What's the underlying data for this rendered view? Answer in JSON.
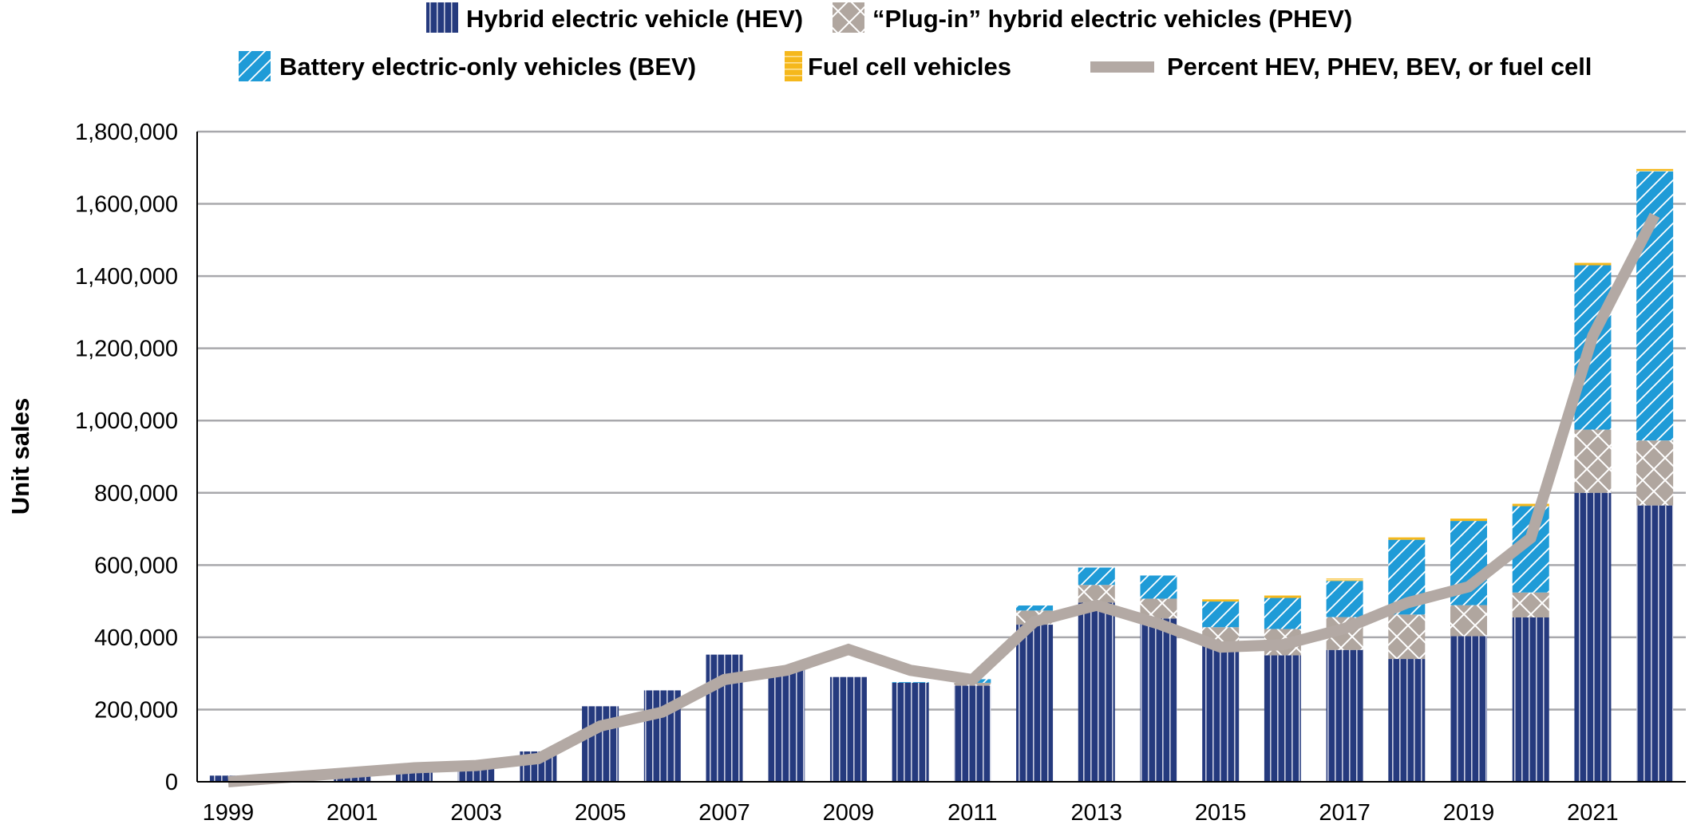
{
  "chart_data": {
    "type": "bar",
    "stacked": true,
    "title": "",
    "xlabel": "",
    "ylabel": "Unit sales",
    "ylim": [
      0,
      1800000
    ],
    "yticks": [
      "0",
      "200,000",
      "400,000",
      "600,000",
      "800,000",
      "1,000,000",
      "1,200,000",
      "1,400,000",
      "1,600,000",
      "1,800,000"
    ],
    "grid": true,
    "legend_position": "top",
    "categories": [
      "1999",
      "2000",
      "2001",
      "2002",
      "2003",
      "2004",
      "2005",
      "2006",
      "2007",
      "2008",
      "2009",
      "2010",
      "2011",
      "2012",
      "2013",
      "2014",
      "2015",
      "2016",
      "2017",
      "2018",
      "2019",
      "2020",
      "2021",
      "2022"
    ],
    "xtick_labels": [
      "1999",
      "2001",
      "2003",
      "2005",
      "2007",
      "2009",
      "2011",
      "2013",
      "2015",
      "2017",
      "2019",
      "2021"
    ],
    "series": [
      {
        "name": "Hybrid electric vehicle (HEV)",
        "color": "#253a7e",
        "values": [
          17000,
          9000,
          20000,
          36000,
          48000,
          84000,
          209000,
          253000,
          352000,
          313000,
          290000,
          274000,
          266000,
          435000,
          496000,
          452000,
          385000,
          350000,
          365000,
          340000,
          403000,
          455000,
          800000,
          765000
        ]
      },
      {
        "name": "“Plug-in” hybrid electric vehicles (PHEV)",
        "color": "#b0a69f",
        "values": [
          0,
          0,
          0,
          0,
          0,
          0,
          0,
          0,
          0,
          0,
          0,
          0,
          8000,
          39000,
          49000,
          55000,
          43000,
          73000,
          91000,
          123000,
          86000,
          69000,
          175000,
          180000
        ]
      },
      {
        "name": "Battery electric-only vehicles (BEV)",
        "color": "#1f9bd7",
        "values": [
          0,
          0,
          0,
          0,
          0,
          0,
          0,
          0,
          0,
          0,
          0,
          2000,
          10000,
          14000,
          48000,
          64000,
          71000,
          86000,
          100000,
          207000,
          233000,
          239000,
          455000,
          745000
        ]
      },
      {
        "name": "Fuel cell vehicles",
        "color": "#f5b81c",
        "values": [
          0,
          0,
          0,
          0,
          0,
          0,
          0,
          0,
          0,
          0,
          0,
          0,
          0,
          0,
          0,
          0,
          2000,
          3000,
          3000,
          3000,
          3000,
          3000,
          3000,
          3000
        ]
      }
    ],
    "line": {
      "name": "Percent HEV, PHEV, BEV, or fuel cell",
      "color": "#b3a9a4",
      "unit": "percent",
      "values": [
        0.0,
        0.1,
        0.2,
        0.3,
        0.35,
        0.5,
        1.2,
        1.5,
        2.2,
        2.4,
        2.85,
        2.4,
        2.2,
        3.45,
        3.8,
        3.4,
        2.9,
        2.95,
        3.3,
        3.85,
        4.2,
        5.25,
        9.6,
        12.2
      ]
    }
  }
}
